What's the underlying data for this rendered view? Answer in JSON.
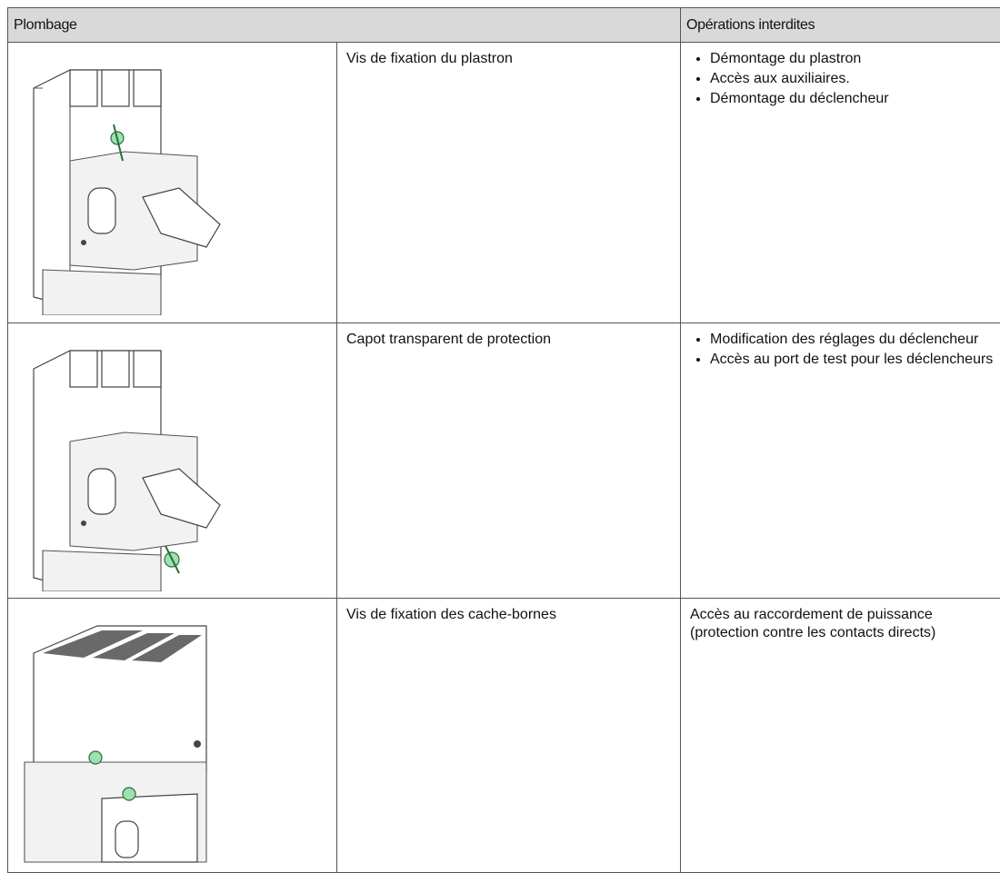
{
  "table": {
    "header": [
      "Plombage",
      "Opérations interdites"
    ],
    "rows": [
      {
        "label": "Vis de fixation du plastron",
        "items": [
          "Démontage du plastron",
          "Accès aux auxiliaires.",
          "Démontage du déclencheur"
        ]
      },
      {
        "label": "Capot transparent de protection",
        "items": [
          "Modification des réglages du déclencheur",
          "Accès au port de test pour les déclencheurs"
        ]
      },
      {
        "label": "Vis de fixation des cache-bornes",
        "text": "Accès au raccordement de puissance (protection contre les contacts directs)"
      }
    ]
  }
}
